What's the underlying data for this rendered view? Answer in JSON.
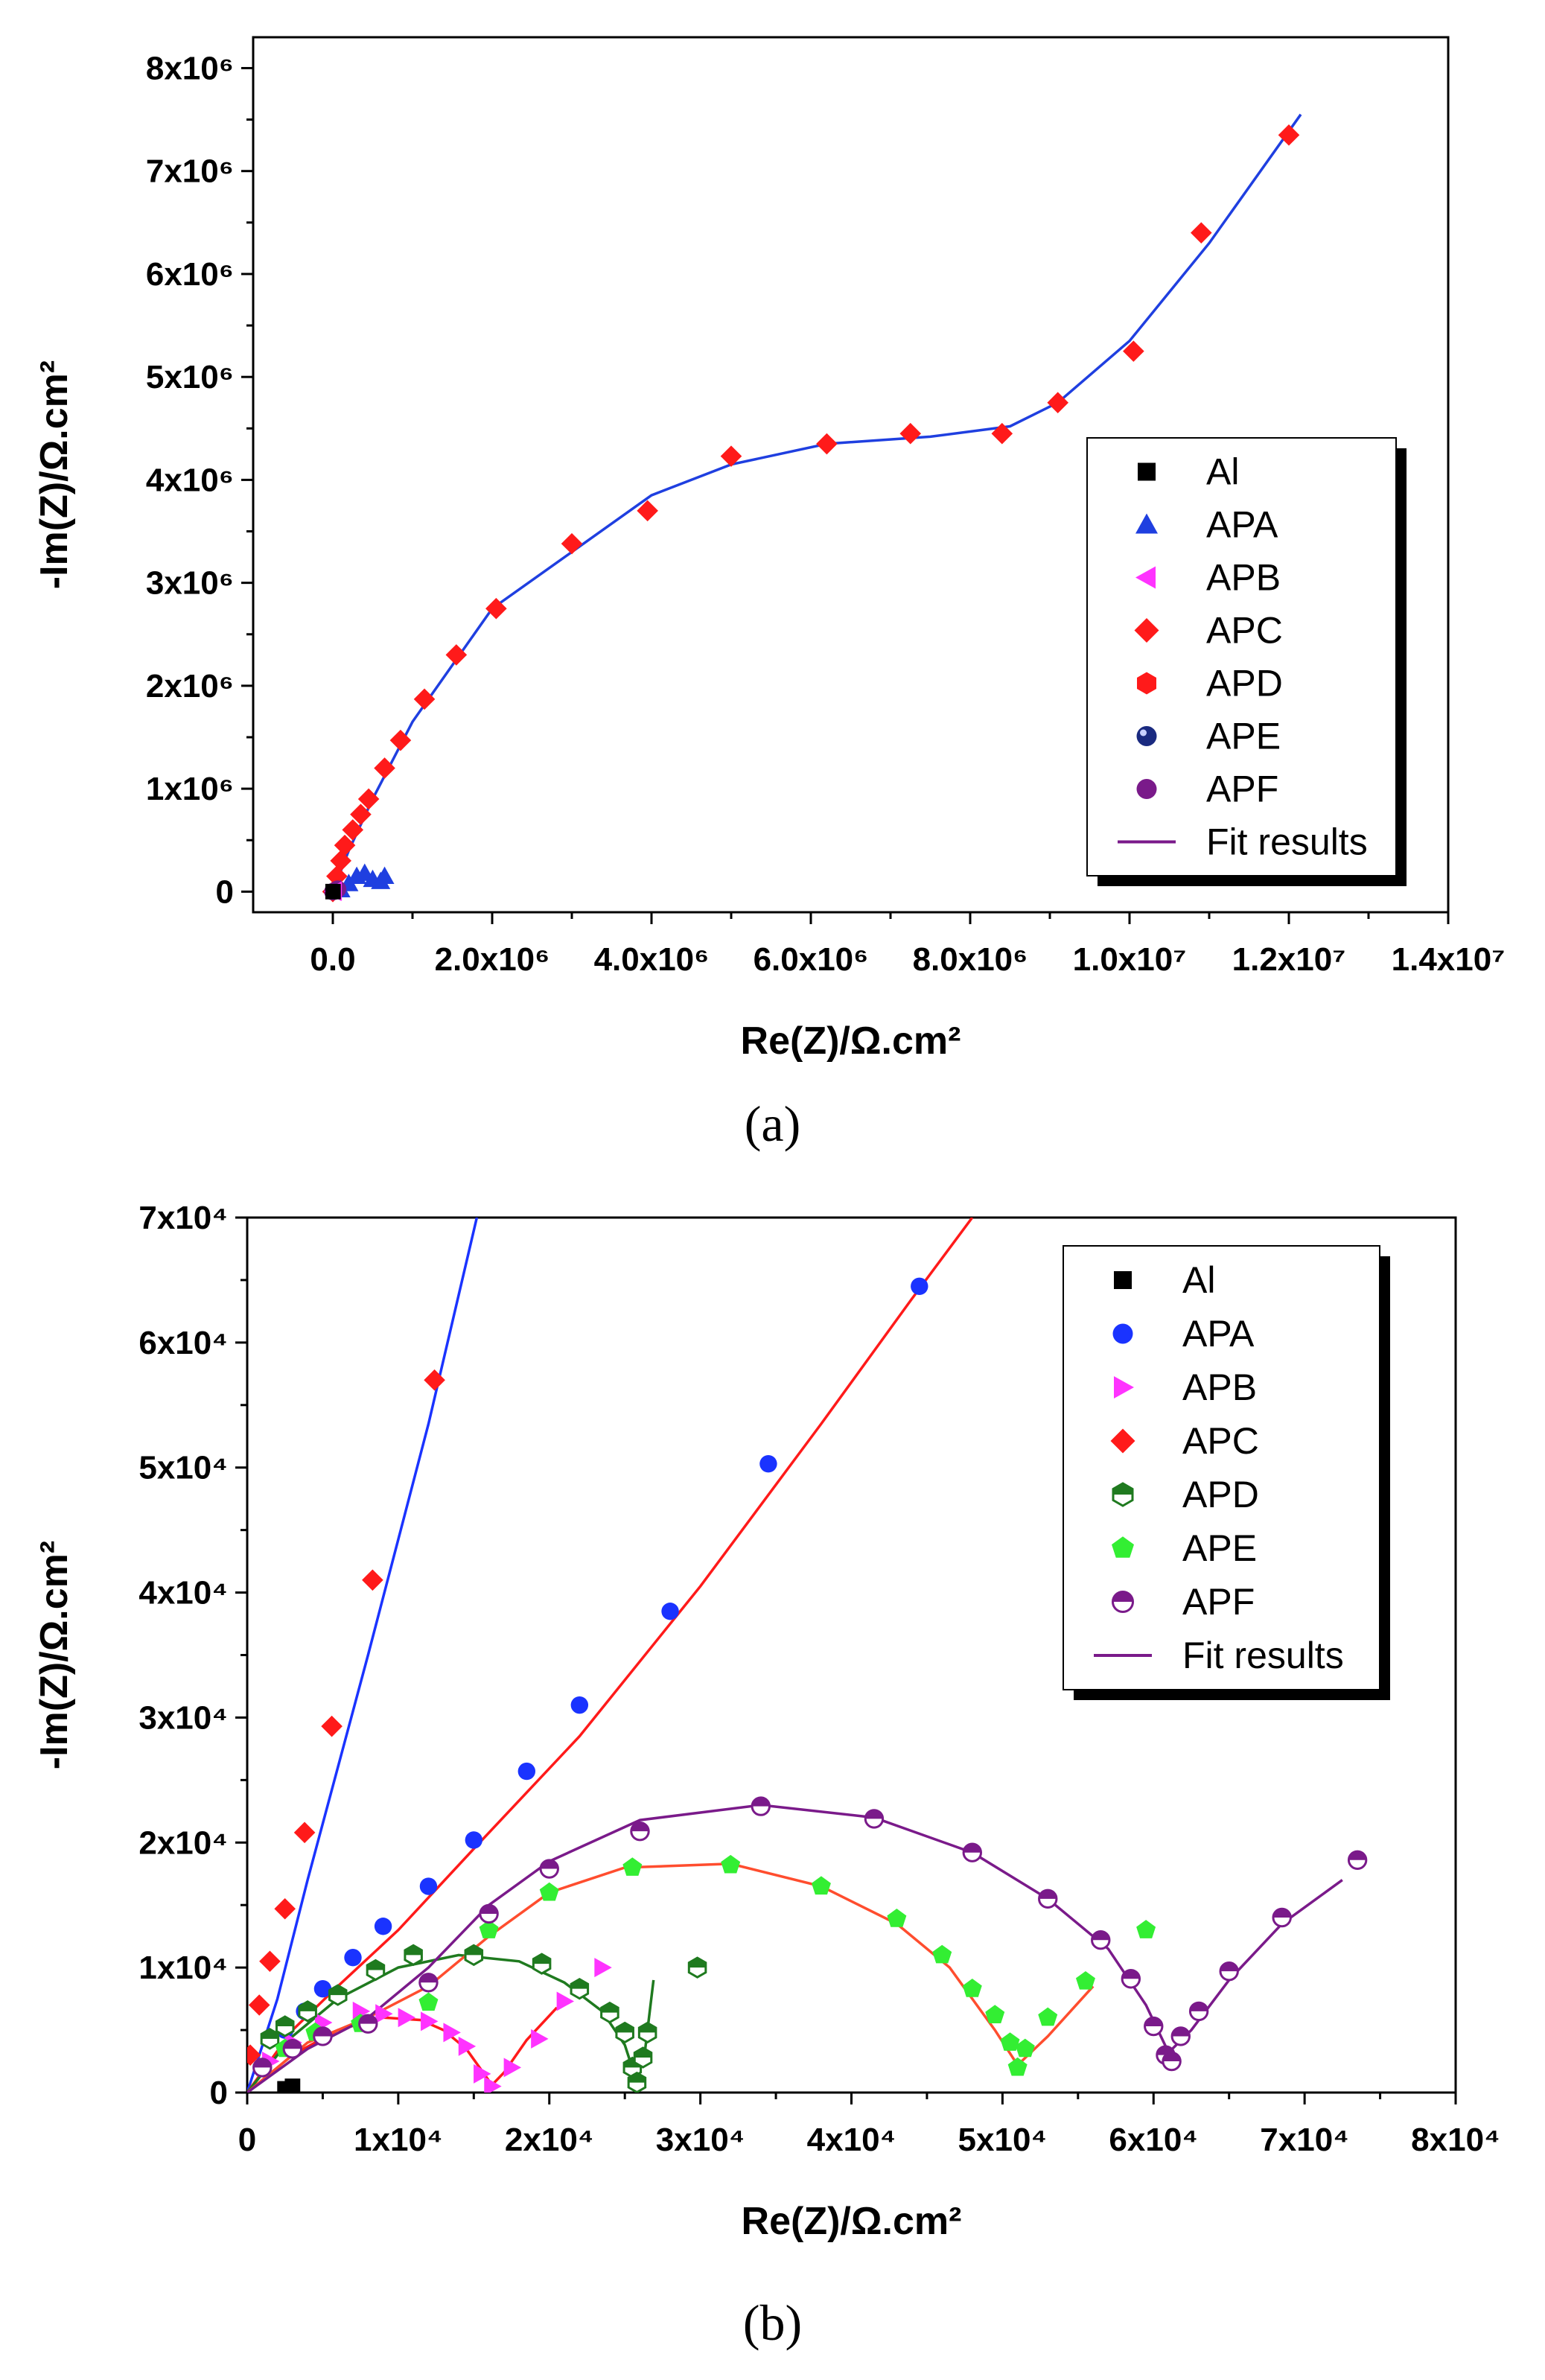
{
  "captions": [
    "(a)",
    "(b)"
  ],
  "chart_data": [
    {
      "type": "scatter",
      "panel": "a",
      "xlabel": "Re(Z)/Ω.cm²",
      "ylabel": "-Im(Z)/Ω.cm²",
      "xlim": [
        -1000000,
        14000000
      ],
      "ylim": [
        -200000,
        8300000
      ],
      "xticks": [
        0,
        2000000,
        4000000,
        6000000,
        8000000,
        10000000,
        12000000,
        14000000
      ],
      "xtick_labels": [
        "0.0",
        "2.0x10⁶",
        "4.0x10⁶",
        "6.0x10⁶",
        "8.0x10⁶",
        "1.0x10⁷",
        "1.2x10⁷",
        "1.4x10⁷"
      ],
      "yticks": [
        0,
        1000000,
        2000000,
        3000000,
        4000000,
        5000000,
        6000000,
        7000000,
        8000000
      ],
      "ytick_labels": [
        "0",
        "1x10⁶",
        "2x10⁶",
        "3x10⁶",
        "4x10⁶",
        "5x10⁶",
        "6x10⁶",
        "7x10⁶",
        "8x10⁶"
      ],
      "legend": {
        "position": "bottom-right",
        "entries": [
          {
            "label": "Al",
            "marker": "square",
            "color": "#000000"
          },
          {
            "label": "APA",
            "marker": "triangle-up",
            "color": "#1f3fe0"
          },
          {
            "label": "APB",
            "marker": "triangle-left",
            "color": "#ff33ff"
          },
          {
            "label": "APC",
            "marker": "diamond",
            "color": "#ff1a1a"
          },
          {
            "label": "APD",
            "marker": "hexagon",
            "color": "#ff1a1a"
          },
          {
            "label": "APE",
            "marker": "ball",
            "color": "#1a2a80"
          },
          {
            "label": "APF",
            "marker": "circle",
            "color": "#7a1a8a"
          },
          {
            "label": "Fit results",
            "marker": "line",
            "color": "#7a1a8a"
          }
        ]
      },
      "series": [
        {
          "name": "APC",
          "marker": "diamond",
          "color": "#ff1a1a",
          "x": [
            0,
            50000,
            100000,
            150000,
            250000,
            350000,
            450000,
            650000,
            850000,
            1150000,
            1550000,
            2050000,
            3000000,
            3950000,
            5000000,
            6200000,
            7250000,
            8400000,
            9100000,
            10050000,
            10900000,
            12000000
          ],
          "y": [
            0,
            150000,
            300000,
            450000,
            600000,
            750000,
            900000,
            1200000,
            1470000,
            1870000,
            2300000,
            2750000,
            3380000,
            3700000,
            4230000,
            4350000,
            4450000,
            4450000,
            4750000,
            5250000,
            6400000,
            7350000
          ]
        },
        {
          "name": "APA",
          "marker": "triangle-up",
          "color": "#1f3fe0",
          "x": [
            100000,
            200000,
            300000,
            400000,
            500000,
            600000,
            650000
          ],
          "y": [
            20000,
            80000,
            150000,
            180000,
            120000,
            100000,
            150000
          ]
        },
        {
          "name": "APF",
          "marker": "circle",
          "color": "#7a1a8a",
          "x": [
            0,
            20000,
            40000,
            60000
          ],
          "y": [
            0,
            5000,
            15000,
            25000
          ]
        },
        {
          "name": "APB",
          "marker": "triangle-left",
          "color": "#ff33ff",
          "x": [
            10000,
            16000
          ],
          "y": [
            3000,
            6000
          ]
        },
        {
          "name": "Al",
          "marker": "square",
          "color": "#000000",
          "x": [
            3000
          ],
          "y": [
            500
          ]
        }
      ],
      "fits": [
        {
          "color": "#1f3fe0",
          "x": [
            0,
            200000,
            500000,
            1000000,
            2000000,
            3000000,
            4000000,
            5000000,
            6200000,
            7500000,
            8500000,
            9100000,
            10000000,
            11000000,
            12150000
          ],
          "y": [
            0,
            400000,
            900000,
            1650000,
            2750000,
            3300000,
            3850000,
            4150000,
            4350000,
            4420000,
            4520000,
            4750000,
            5350000,
            6300000,
            7550000
          ]
        }
      ]
    },
    {
      "type": "scatter",
      "panel": "b",
      "xlabel": "Re(Z)/Ω.cm²",
      "ylabel": "-Im(Z)/Ω.cm²",
      "xlim": [
        0,
        80000
      ],
      "ylim": [
        0,
        70000
      ],
      "xticks": [
        0,
        10000,
        20000,
        30000,
        40000,
        50000,
        60000,
        70000,
        80000
      ],
      "xtick_labels": [
        "0",
        "1x10⁴",
        "2x10⁴",
        "3x10⁴",
        "4x10⁴",
        "5x10⁴",
        "6x10⁴",
        "7x10⁴",
        "8x10⁴"
      ],
      "yticks": [
        0,
        10000,
        20000,
        30000,
        40000,
        50000,
        60000,
        70000
      ],
      "ytick_labels": [
        "0",
        "1x10⁴",
        "2x10⁴",
        "3x10⁴",
        "4x10⁴",
        "5x10⁴",
        "6x10⁴",
        "7x10⁴"
      ],
      "legend": {
        "position": "top-right",
        "entries": [
          {
            "label": "Al",
            "marker": "square",
            "color": "#000000"
          },
          {
            "label": "APA",
            "marker": "circle",
            "color": "#1a33ff"
          },
          {
            "label": "APB",
            "marker": "triangle-right",
            "color": "#ff33ff"
          },
          {
            "label": "APC",
            "marker": "diamond",
            "color": "#ff1a1a"
          },
          {
            "label": "APD",
            "marker": "hexagon-half",
            "color": "#1f7a1f"
          },
          {
            "label": "APE",
            "marker": "pentagon",
            "color": "#33ee33"
          },
          {
            "label": "APF",
            "marker": "circle-half",
            "color": "#7a1a8a"
          },
          {
            "label": "Fit results",
            "marker": "line",
            "color": "#7a1a8a"
          }
        ]
      },
      "series": [
        {
          "name": "APC",
          "marker": "diamond",
          "color": "#ff1a1a",
          "x": [
            200,
            800,
            1500,
            2500,
            3800,
            5600,
            8300,
            12400
          ],
          "y": [
            3000,
            7000,
            10500,
            14700,
            20800,
            29300,
            41000,
            57000
          ]
        },
        {
          "name": "APA",
          "marker": "circle",
          "color": "#1a33ff",
          "x": [
            2500,
            3800,
            5000,
            7000,
            9000,
            12000,
            15000,
            18500,
            22000,
            28000,
            34500,
            44500
          ],
          "y": [
            5000,
            6500,
            8300,
            10800,
            13300,
            16500,
            20200,
            25700,
            31000,
            38500,
            50300,
            64500
          ]
        },
        {
          "name": "APB",
          "marker": "triangle-right",
          "color": "#ff33ff",
          "x": [
            1500,
            3000,
            5000,
            7500,
            9000,
            10500,
            12000,
            13500,
            14500,
            15500,
            16200,
            17500,
            19300,
            21000,
            23500
          ],
          "y": [
            2500,
            4000,
            5600,
            6500,
            6300,
            6000,
            5700,
            4800,
            3700,
            1500,
            500,
            2000,
            4300,
            7300,
            10000
          ]
        },
        {
          "name": "APD",
          "marker": "hexagon-half",
          "color": "#1f7a1f",
          "x": [
            1500,
            2500,
            4000,
            6000,
            8500,
            11000,
            15000,
            19500,
            22000,
            24000,
            25000,
            25500,
            25800,
            26200,
            26500,
            29800
          ],
          "y": [
            4300,
            5300,
            6500,
            7800,
            9800,
            11000,
            11000,
            10300,
            8300,
            6400,
            4800,
            2000,
            800,
            2800,
            4800,
            10000
          ]
        },
        {
          "name": "APE",
          "marker": "pentagon",
          "color": "#33ee33",
          "x": [
            1000,
            2500,
            4500,
            7500,
            12000,
            16000,
            20000,
            25500,
            32000,
            38000,
            43000,
            46000,
            48000,
            49500,
            50500,
            51000,
            51500,
            53000,
            55500,
            59500
          ],
          "y": [
            2000,
            3500,
            4800,
            5500,
            7200,
            13000,
            16000,
            18000,
            18200,
            16500,
            13900,
            11000,
            8300,
            6200,
            4000,
            2000,
            3500,
            6000,
            8900,
            13000
          ]
        },
        {
          "name": "APF",
          "marker": "circle-half",
          "color": "#7a1a8a",
          "x": [
            1000,
            3000,
            5000,
            8000,
            12000,
            16000,
            20000,
            26000,
            34000,
            41500,
            48000,
            53000,
            56500,
            58500,
            60000,
            60800,
            61200,
            61800,
            63000,
            65000,
            68500,
            73500
          ],
          "y": [
            2000,
            3500,
            4500,
            5500,
            8800,
            14300,
            17900,
            20900,
            22900,
            21900,
            19200,
            15500,
            12200,
            9100,
            5300,
            3000,
            2500,
            4500,
            6500,
            9700,
            14000,
            18600
          ]
        },
        {
          "name": "Al",
          "marker": "square",
          "color": "#000000",
          "x": [
            2500,
            3000
          ],
          "y": [
            300,
            500
          ]
        }
      ],
      "fits": [
        {
          "color": "#1a33ff",
          "x": [
            0,
            2000,
            4000,
            8000,
            12000,
            15200
          ],
          "y": [
            0,
            7500,
            17000,
            35000,
            53500,
            70000
          ]
        },
        {
          "color": "#ff1a1a",
          "x": [
            0,
            3000,
            6000,
            10000,
            15000,
            22000,
            30000,
            38000,
            44000,
            48000
          ],
          "y": [
            0,
            5000,
            8500,
            13000,
            19500,
            28500,
            40500,
            53500,
            63500,
            70000
          ]
        },
        {
          "color": "#ff1a1a",
          "x": [
            0,
            3000,
            6000,
            9000,
            11500,
            13000,
            14500,
            15500,
            16200,
            17000,
            18500,
            20500
          ],
          "y": [
            0,
            3000,
            5000,
            6000,
            5800,
            5000,
            3500,
            1800,
            600,
            1600,
            4200,
            6800
          ]
        },
        {
          "color": "#1f7a1f",
          "x": [
            0,
            3000,
            6000,
            10000,
            14000,
            18000,
            21000,
            23500,
            25000,
            25700,
            26300,
            26900
          ],
          "y": [
            0,
            4500,
            7500,
            10000,
            11000,
            10500,
            8800,
            6500,
            3800,
            1200,
            3000,
            9000
          ]
        },
        {
          "color": "#ff4d2e",
          "x": [
            0,
            4000,
            8000,
            12000,
            16000,
            20000,
            25000,
            32000,
            38000,
            43000,
            46500,
            49500,
            51000,
            53000,
            56000
          ],
          "y": [
            0,
            4000,
            6000,
            8500,
            12500,
            16000,
            18000,
            18300,
            16500,
            13500,
            10000,
            5000,
            2200,
            4500,
            8500
          ]
        },
        {
          "color": "#7a1a8a",
          "x": [
            0,
            4000,
            8000,
            12000,
            16000,
            20000,
            26000,
            34000,
            41500,
            48000,
            53000,
            57000,
            59500,
            61000,
            62500,
            65000,
            68500,
            72500
          ],
          "y": [
            0,
            3500,
            6000,
            10000,
            15000,
            18500,
            21800,
            23000,
            22000,
            19200,
            15500,
            11500,
            7000,
            3200,
            5000,
            9000,
            13500,
            17000
          ]
        }
      ]
    }
  ]
}
